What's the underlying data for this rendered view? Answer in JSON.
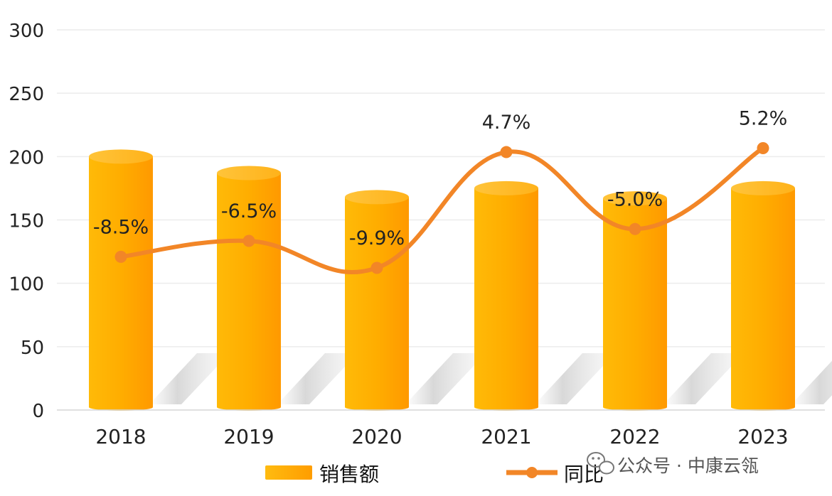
{
  "chart_data": {
    "type": "bar",
    "categories": [
      "2018",
      "2019",
      "2020",
      "2021",
      "2022",
      "2023"
    ],
    "series": [
      {
        "name": "销售额",
        "type": "bar",
        "values": [
          200,
          187,
          168,
          175,
          167,
          175
        ],
        "color": "#ffa500"
      },
      {
        "name": "同比",
        "type": "line",
        "values": [
          -8.5,
          -6.5,
          -9.9,
          4.7,
          -5.0,
          5.2
        ],
        "labels": [
          "-8.5%",
          "-6.5%",
          "-9.9%",
          "4.7%",
          "-5.0%",
          "5.2%"
        ],
        "color": "#f28627"
      }
    ],
    "ylim": [
      0,
      300
    ],
    "yticks": [
      "0",
      "50",
      "100",
      "150",
      "200",
      "250",
      "300"
    ],
    "grid": true,
    "legend": "bottom"
  },
  "watermark": {
    "text": "公众号 · 中康云瓴",
    "icon": "wechat-icon"
  }
}
